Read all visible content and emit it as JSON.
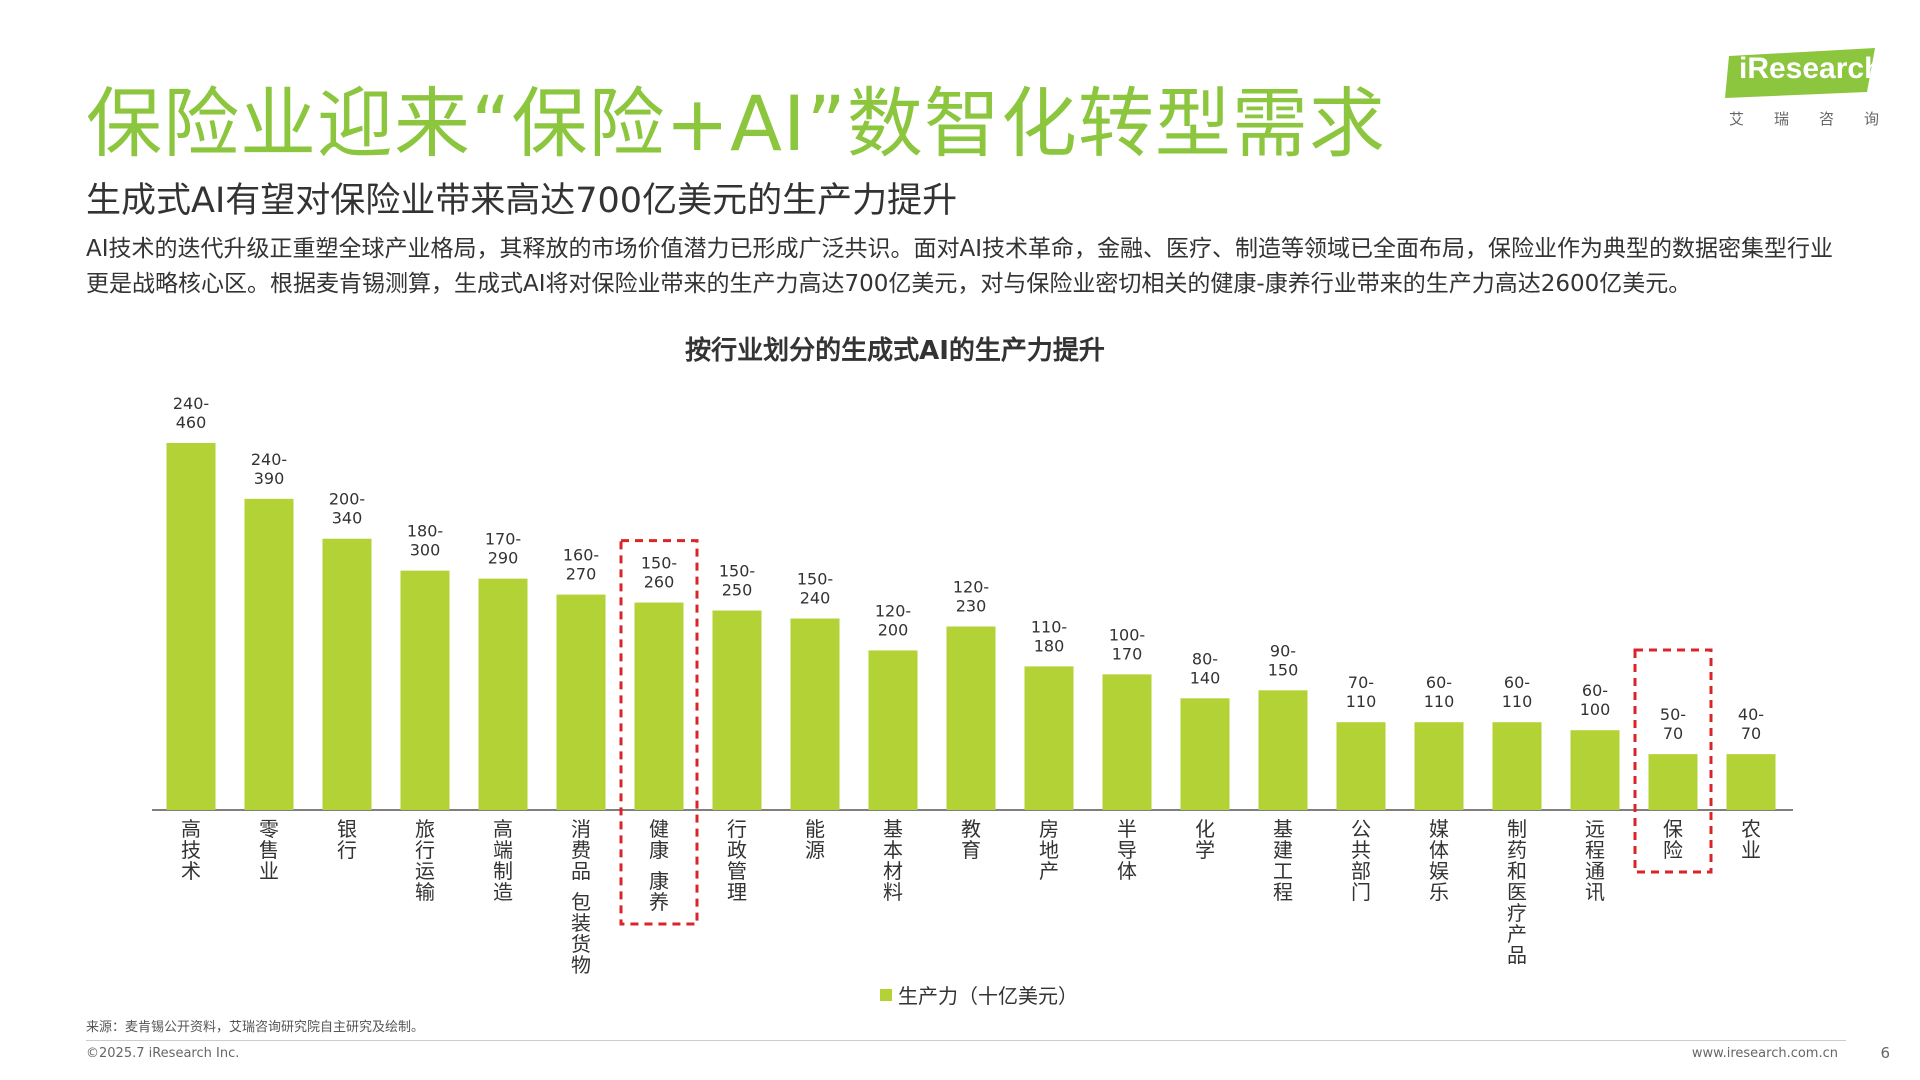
{
  "header": {
    "title": "保险业迎来“保险+AI”数智化转型需求",
    "subtitle": "生成式AI有望对保险业带来高达700亿美元的生产力提升",
    "paragraph": "AI技术的迭代升级正重塑全球产业格局，其释放的市场价值潜力已形成广泛共识。面对AI技术革命，金融、医疗、制造等领域已全面布局，保险业作为典型的数据密集型行业更是战略核心区。根据麦肯锡测算，生成式AI将对保险业带来的生产力高达700亿美元，对与保险业密切相关的健康-康养行业带来的生产力高达2600亿美元。"
  },
  "logo": {
    "text": "iResearch",
    "sub": [
      "艾",
      "瑞",
      "咨",
      "询"
    ]
  },
  "chart_data": {
    "type": "bar",
    "title": "按行业划分的生成式AI的生产力提升",
    "categories": [
      "高技术",
      "零售业",
      "银行",
      "旅行运输",
      "高端制造",
      "消费品 包装货物",
      "健康 康养",
      "行政管理",
      "能源",
      "基本材料",
      "教育",
      "房地产",
      "半导体",
      "化学",
      "基建工程",
      "公共部门",
      "媒体娱乐",
      "制药和医疗产品",
      "远程通讯",
      "保险",
      "农业"
    ],
    "series": [
      {
        "name": "生产力（十亿美元）",
        "values": [
          460,
          390,
          340,
          300,
          290,
          270,
          260,
          250,
          240,
          200,
          230,
          180,
          170,
          140,
          150,
          110,
          110,
          110,
          100,
          70,
          70
        ],
        "range_labels": [
          "240-460",
          "240-390",
          "200-340",
          "180-300",
          "170-290",
          "160-270",
          "150-260",
          "150-250",
          "150-240",
          "120-200",
          "120-230",
          "110-180",
          "100-170",
          "80-140",
          "90-150",
          "70-110",
          "60-110",
          "60-110",
          "60-100",
          "50-70",
          "40-70"
        ]
      }
    ],
    "highlighted": [
      "健康 康养",
      "保险"
    ],
    "ylim": [
      0,
      460
    ],
    "grid": false,
    "legend": "bottom-center",
    "bar_color": "#b2d235",
    "highlight_color": "#d9252a"
  },
  "footer": {
    "source": "来源：麦肯锡公开资料，艾瑞咨询研究院自主研究及绘制。",
    "copyright": "©2025.7 iResearch Inc.",
    "website": "www.iresearch.com.cn",
    "page": "6"
  }
}
